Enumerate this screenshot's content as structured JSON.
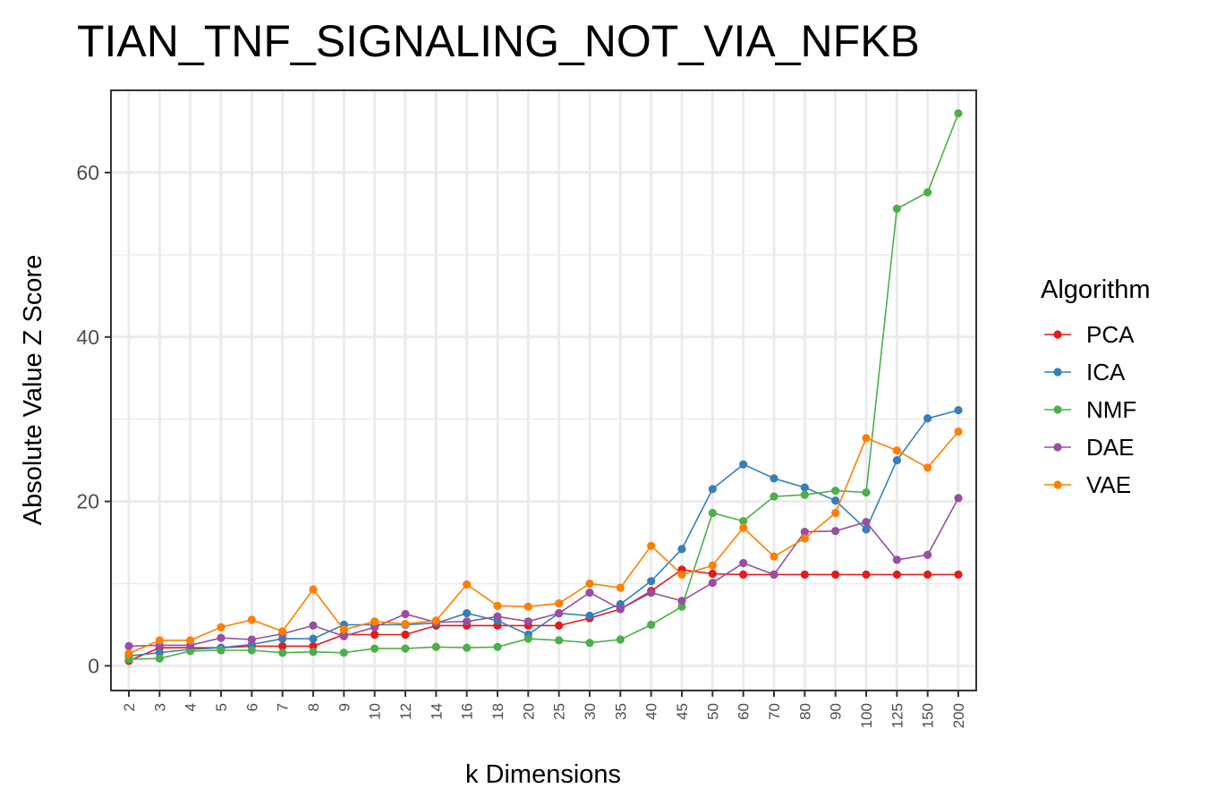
{
  "chart_data": {
    "type": "line",
    "title": "TIAN_TNF_SIGNALING_NOT_VIA_NFKB",
    "xlabel": "k Dimensions",
    "ylabel": "Absolute Value Z Score",
    "categories": [
      "2",
      "3",
      "4",
      "5",
      "6",
      "7",
      "8",
      "9",
      "10",
      "12",
      "14",
      "16",
      "18",
      "20",
      "25",
      "30",
      "35",
      "40",
      "45",
      "50",
      "60",
      "70",
      "80",
      "90",
      "100",
      "125",
      "150",
      "200"
    ],
    "ylim": [
      -3,
      70
    ],
    "yticks": [
      0,
      20,
      40,
      60
    ],
    "grid": true,
    "legend": {
      "title": "Algorithm",
      "position": "right"
    },
    "series": [
      {
        "name": "PCA",
        "color": "#e41a1c",
        "values": [
          0.6,
          2.2,
          2.2,
          2.2,
          2.4,
          2.4,
          2.4,
          3.8,
          3.8,
          3.8,
          4.9,
          4.9,
          4.9,
          4.9,
          4.9,
          5.8,
          6.9,
          9.1,
          11.7,
          11.2,
          11.1,
          11.1,
          11.1,
          11.1,
          11.1,
          11.1,
          11.1,
          11.1
        ]
      },
      {
        "name": "ICA",
        "color": "#377eb8",
        "values": [
          1.2,
          1.6,
          2.0,
          2.2,
          2.6,
          3.3,
          3.3,
          5.0,
          5.0,
          5.0,
          5.2,
          6.4,
          5.5,
          3.8,
          6.4,
          6.1,
          7.5,
          10.3,
          14.2,
          21.5,
          24.5,
          22.8,
          21.7,
          20.1,
          16.6,
          25.0,
          30.1,
          31.1
        ]
      },
      {
        "name": "NMF",
        "color": "#4daf4a",
        "values": [
          0.8,
          0.9,
          1.8,
          1.9,
          1.9,
          1.6,
          1.7,
          1.6,
          2.1,
          2.1,
          2.3,
          2.2,
          2.3,
          3.3,
          3.1,
          2.8,
          3.2,
          5.0,
          7.2,
          18.6,
          17.6,
          20.6,
          20.8,
          21.3,
          21.1,
          55.6,
          57.6,
          67.2
        ]
      },
      {
        "name": "DAE",
        "color": "#984ea3",
        "values": [
          2.4,
          2.5,
          2.5,
          3.4,
          3.2,
          3.9,
          4.9,
          3.6,
          4.7,
          6.3,
          5.3,
          5.4,
          6.0,
          5.4,
          6.4,
          8.9,
          6.9,
          8.9,
          7.9,
          10.1,
          12.5,
          11.1,
          16.3,
          16.4,
          17.5,
          12.9,
          13.5,
          20.4
        ]
      },
      {
        "name": "VAE",
        "color": "#ff7f00",
        "values": [
          1.5,
          3.1,
          3.1,
          4.7,
          5.6,
          4.2,
          9.3,
          4.4,
          5.4,
          5.1,
          5.5,
          9.9,
          7.3,
          7.2,
          7.6,
          10.0,
          9.5,
          14.6,
          11.1,
          12.2,
          16.8,
          13.3,
          15.5,
          18.6,
          27.7,
          26.2,
          24.1,
          28.5
        ]
      }
    ]
  }
}
